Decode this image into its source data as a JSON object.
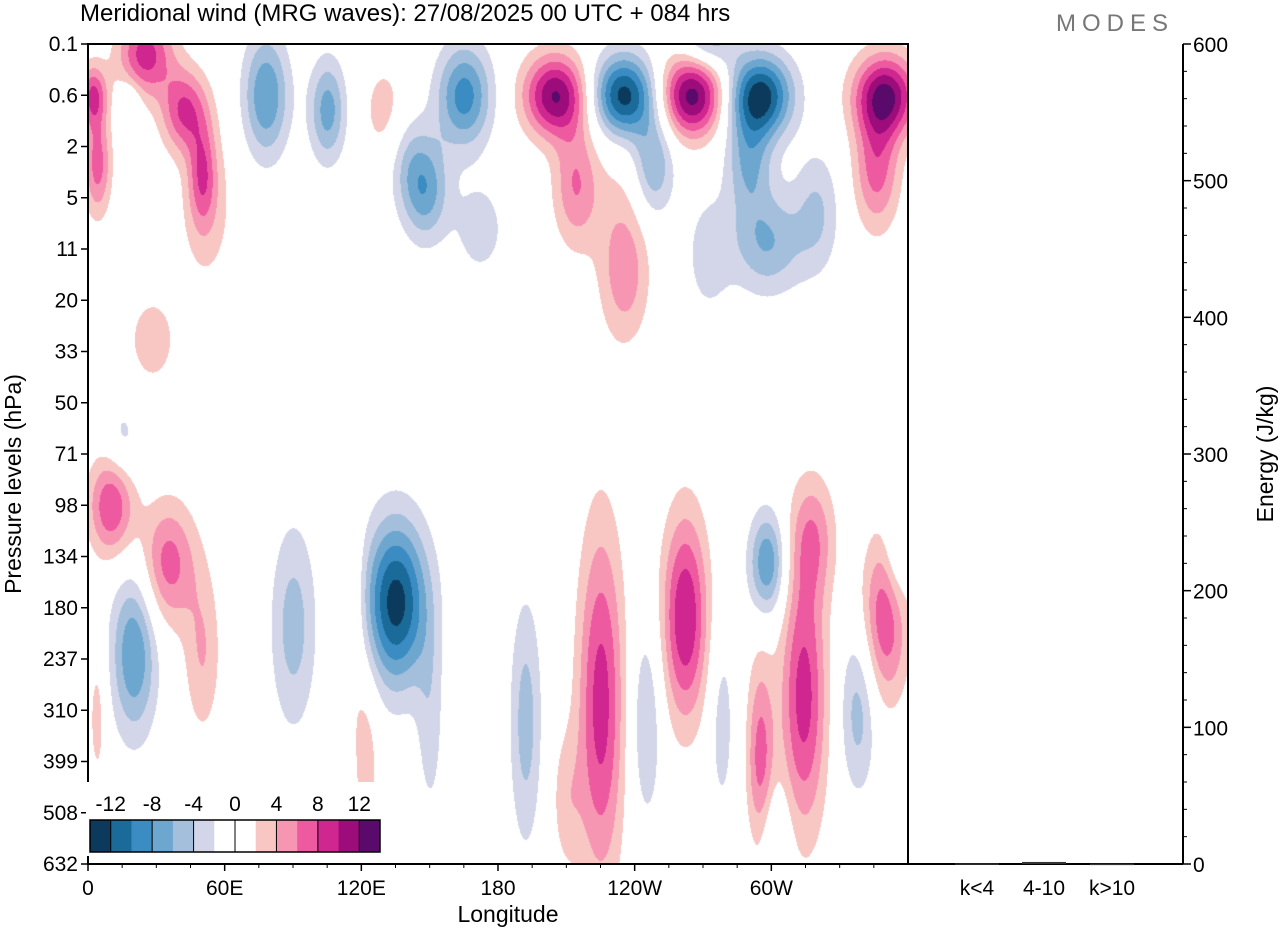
{
  "header": {
    "title": "Meridional wind (MRG waves):  27/08/2025  00 UTC  + 084 hrs",
    "brand": "MODES"
  },
  "chart_data": {
    "type": "heatmap",
    "title": "Meridional wind (MRG waves):  27/08/2025  00 UTC  + 084 hrs",
    "xlabel": "Longitude",
    "ylabel": "Pressure levels (hPa)",
    "x_ticks": [
      "0",
      "60E",
      "120E",
      "180",
      "120W",
      "60W"
    ],
    "x_tick_lon": [
      0,
      60,
      120,
      180,
      240,
      300
    ],
    "x_range": [
      0,
      360
    ],
    "y_ticks": [
      "0.1",
      "0.6",
      "2",
      "5",
      "11",
      "20",
      "33",
      "50",
      "71",
      "98",
      "134",
      "180",
      "237",
      "310",
      "399",
      "508",
      "632"
    ],
    "colorbar": {
      "labels": [
        "-12",
        "-8",
        "-4",
        "0",
        "4",
        "8",
        "12"
      ],
      "colors": [
        "#0c3a5c",
        "#1a6a9a",
        "#3a8cc2",
        "#6da7d0",
        "#a4bfdc",
        "#d2d6e8",
        "#ffffff",
        "#ffffff",
        "#f8c7c3",
        "#f796b3",
        "#ee5aa0",
        "#cf2690",
        "#9c0c7a",
        "#5a0a6a"
      ]
    },
    "blobs": [
      {
        "lon": 25,
        "lev": 0.2,
        "rl": 12,
        "rv": 0.8,
        "v": 9
      },
      {
        "lon": 42,
        "lev": 1.0,
        "rl": 10,
        "rv": 0.8,
        "v": 8
      },
      {
        "lon": 2,
        "lev": 0.6,
        "rl": 6,
        "rv": 0.6,
        "v": 8
      },
      {
        "lon": 18,
        "lev": 0.8,
        "rl": 5,
        "rv": 0.5,
        "v": -3
      },
      {
        "lon": 4,
        "lev": 3.0,
        "rl": 6,
        "rv": 1.0,
        "v": 7
      },
      {
        "lon": 50,
        "lev": 3.6,
        "rl": 6,
        "rv": 1.0,
        "v": 6
      },
      {
        "lon": 52,
        "lev": 6.0,
        "rl": 12,
        "rv": 1.6,
        "v": 3
      },
      {
        "lon": 78,
        "lev": 0.6,
        "rl": 10,
        "rv": 1.2,
        "v": -8
      },
      {
        "lon": 105,
        "lev": 1.0,
        "rl": 8,
        "rv": 1.0,
        "v": -7
      },
      {
        "lon": 130,
        "lev": 1.0,
        "rl": 10,
        "rv": 1.0,
        "v": 3
      },
      {
        "lon": 140,
        "lev": 2.8,
        "rl": 9,
        "rv": 1.0,
        "v": -3
      },
      {
        "lon": 148,
        "lev": 4.5,
        "rl": 10,
        "rv": 1.0,
        "v": -7
      },
      {
        "lon": 165,
        "lev": 0.6,
        "rl": 12,
        "rv": 1.0,
        "v": -9
      },
      {
        "lon": 205,
        "lev": 0.6,
        "rl": 14,
        "rv": 0.8,
        "v": 12
      },
      {
        "lon": 235,
        "lev": 0.6,
        "rl": 14,
        "rv": 0.8,
        "v": -13
      },
      {
        "lon": 265,
        "lev": 0.6,
        "rl": 14,
        "rv": 0.8,
        "v": 13
      },
      {
        "lon": 295,
        "lev": 0.6,
        "rl": 14,
        "rv": 0.8,
        "v": -13
      },
      {
        "lon": 350,
        "lev": 0.6,
        "rl": 14,
        "rv": 0.8,
        "v": 12
      },
      {
        "lon": 272,
        "lev": 0.05,
        "rl": 12,
        "rv": 0.6,
        "v": -6
      },
      {
        "lon": 214,
        "lev": 4.2,
        "rl": 10,
        "rv": 1.2,
        "v": 6
      },
      {
        "lon": 248,
        "lev": 3.0,
        "rl": 9,
        "rv": 1.0,
        "v": -6
      },
      {
        "lon": 290,
        "lev": 2.8,
        "rl": 10,
        "rv": 1.0,
        "v": -6
      },
      {
        "lon": 320,
        "lev": 6.5,
        "rl": 10,
        "rv": 1.2,
        "v": -4
      },
      {
        "lon": 346,
        "lev": 3.2,
        "rl": 10,
        "rv": 1.2,
        "v": 7
      },
      {
        "lon": 234,
        "lev": 10.0,
        "rl": 12,
        "rv": 1.8,
        "v": 3
      },
      {
        "lon": 298,
        "lev": 10.2,
        "rl": 16,
        "rv": 1.0,
        "v": -6
      },
      {
        "lon": 272,
        "lev": 12.0,
        "rl": 10,
        "rv": 1.2,
        "v": -3
      },
      {
        "lon": 172,
        "lev": 8.6,
        "rl": 12,
        "rv": 1.0,
        "v": -3
      },
      {
        "lon": 236,
        "lev": 16.5,
        "rl": 10,
        "rv": 1.2,
        "v": 3
      },
      {
        "lon": 28,
        "lev": 30.0,
        "rl": 12,
        "rv": 1.0,
        "v": 3
      },
      {
        "lon": 15,
        "lev": 65.0,
        "rl": 8,
        "rv": 0.8,
        "v": -3
      },
      {
        "lon": 10,
        "lev": 98.0,
        "rl": 10,
        "rv": 1.0,
        "v": 8
      },
      {
        "lon": 35,
        "lev": 140.0,
        "rl": 12,
        "rv": 1.2,
        "v": 7
      },
      {
        "lon": 20,
        "lev": 230.0,
        "rl": 10,
        "rv": 1.6,
        "v": -8
      },
      {
        "lon": 50,
        "lev": 230.0,
        "rl": 8,
        "rv": 1.6,
        "v": 4
      },
      {
        "lon": 90,
        "lev": 200.0,
        "rl": 10,
        "rv": 2.0,
        "v": -5
      },
      {
        "lon": 135,
        "lev": 175.0,
        "rl": 14,
        "rv": 1.6,
        "v": -13
      },
      {
        "lon": 115,
        "lev": 180.0,
        "rl": 6,
        "rv": 2.0,
        "v": 3
      },
      {
        "lon": 192,
        "lev": 330.0,
        "rl": 7,
        "rv": 2.4,
        "v": -5
      },
      {
        "lon": 225,
        "lev": 300.0,
        "rl": 10,
        "rv": 3.4,
        "v": 9
      },
      {
        "lon": 262,
        "lev": 190.0,
        "rl": 10,
        "rv": 2.0,
        "v": 10
      },
      {
        "lon": 245,
        "lev": 330.0,
        "rl": 7,
        "rv": 2.0,
        "v": -4
      },
      {
        "lon": 278,
        "lev": 330.0,
        "rl": 6,
        "rv": 2.0,
        "v": -3
      },
      {
        "lon": 295,
        "lev": 400.0,
        "rl": 6,
        "rv": 2.0,
        "v": 7
      },
      {
        "lon": 314,
        "lev": 290.0,
        "rl": 10,
        "rv": 2.6,
        "v": 9
      },
      {
        "lon": 298,
        "lev": 140.0,
        "rl": 8,
        "rv": 1.0,
        "v": -8
      },
      {
        "lon": 318,
        "lev": 120.0,
        "rl": 10,
        "rv": 1.2,
        "v": 5
      },
      {
        "lon": 350,
        "lev": 190.0,
        "rl": 10,
        "rv": 1.6,
        "v": 8
      },
      {
        "lon": 338,
        "lev": 310.0,
        "rl": 8,
        "rv": 1.6,
        "v": -5
      },
      {
        "lon": 355,
        "lev": 130.0,
        "rl": 6,
        "rv": 1.2,
        "v": -4
      },
      {
        "lon": 122,
        "lev": 390.0,
        "rl": 6,
        "rv": 2.0,
        "v": 3
      },
      {
        "lon": 150,
        "lev": 330.0,
        "rl": 6,
        "rv": 2.0,
        "v": -3
      },
      {
        "lon": 210,
        "lev": 480.0,
        "rl": 7,
        "rv": 1.4,
        "v": 3
      },
      {
        "lon": 300,
        "lev": 560.0,
        "rl": 8,
        "rv": 1.0,
        "v": -3
      },
      {
        "lon": 4,
        "lev": 320.0,
        "rl": 4,
        "rv": 1.4,
        "v": 3
      }
    ],
    "energy_panel": {
      "ylabel": "Energy (J/kg)",
      "y_ticks": [
        "0",
        "100",
        "200",
        "300",
        "400",
        "500",
        "600"
      ],
      "ylim": [
        0,
        600
      ],
      "categories": [
        "k<4",
        "4-10",
        "k>10"
      ],
      "values": [
        0.5,
        1.5,
        0.3
      ]
    }
  }
}
